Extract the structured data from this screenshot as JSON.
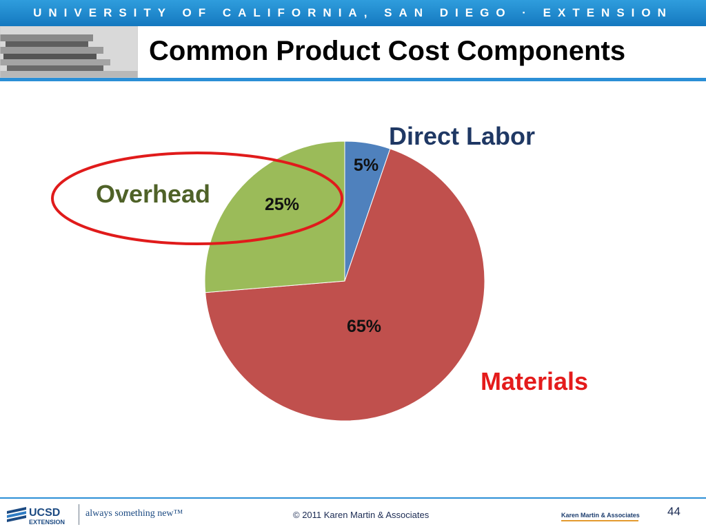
{
  "header": {
    "band_text": "UNIVERSITY OF CALIFORNIA, SAN DIEGO · EXTENSION",
    "title": "Common Product Cost Components"
  },
  "chart_data": {
    "type": "pie",
    "slices": [
      {
        "label": "Direct Labor",
        "value": 5,
        "value_label": "5%",
        "color": "#4f81bd",
        "label_color": "#1f3864"
      },
      {
        "label": "Materials",
        "value": 65,
        "value_label": "65%",
        "color": "#c0504d",
        "label_color": "#e41b1b"
      },
      {
        "label": "Overhead",
        "value": 25,
        "value_label": "25%",
        "color": "#9bbb59",
        "label_color": "#4f6228"
      }
    ],
    "highlighted_slice": "Overhead",
    "highlight_color": "#e01b1b"
  },
  "footer": {
    "logo_text": "UCSD",
    "logo_subtext": "EXTENSION",
    "tagline": "always something new™",
    "copyright": "© 2011 Karen Martin & Associates",
    "brand": "Karen Martin & Associates",
    "page_number": "44"
  }
}
